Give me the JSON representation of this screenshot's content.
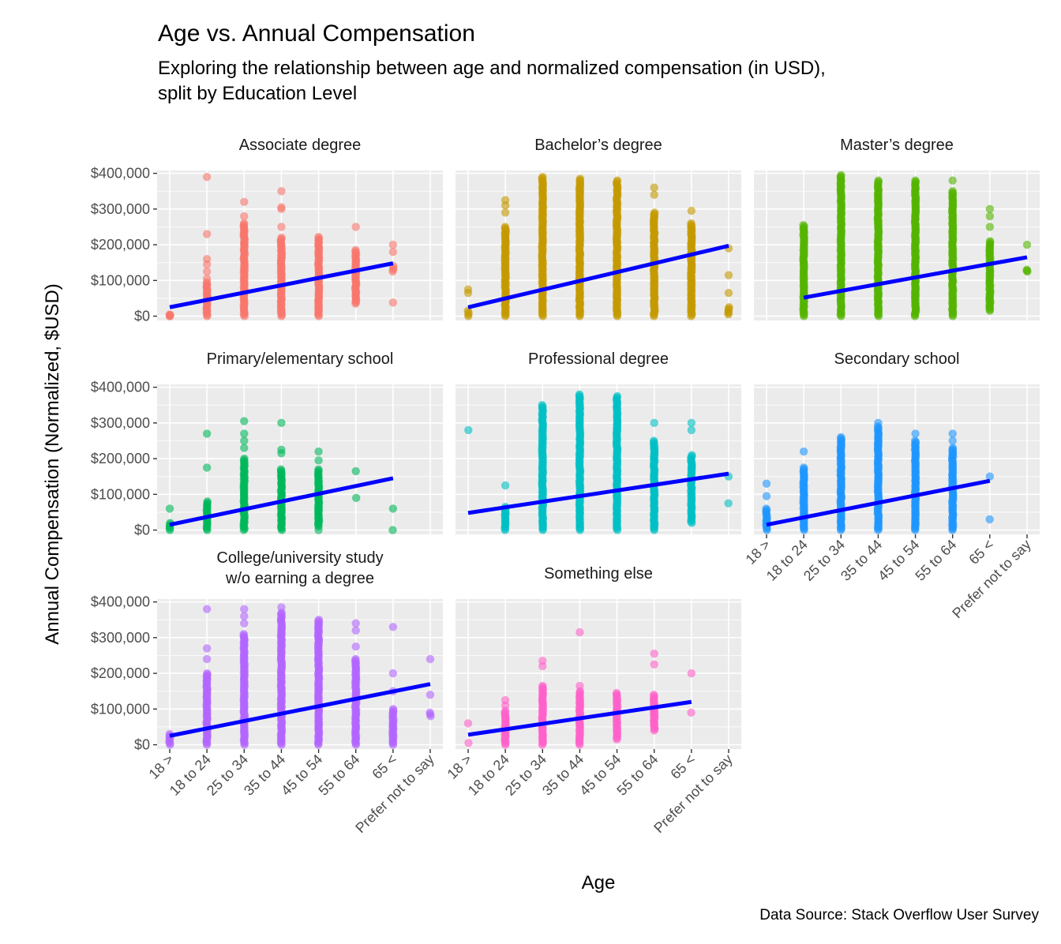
{
  "chart_data": {
    "type": "scatter",
    "title": "Age vs. Annual Compensation",
    "subtitle_lines": [
      "Exploring the relationship between age and normalized compensation (in USD),",
      "split by Education Level"
    ],
    "xlabel": "Age",
    "ylabel": "Annual Compensation (Normalized, $USD)",
    "caption": "Data Source: Stack Overflow User Survey",
    "categories": [
      "18 >",
      "18 to 24",
      "25 to 34",
      "35 to 44",
      "45 to 54",
      "55 to 64",
      "65 <",
      "Prefer not to say"
    ],
    "y_ticks": [
      0,
      100000,
      200000,
      300000,
      400000
    ],
    "y_tick_labels": [
      "$0",
      "$100,000",
      "$200,000",
      "$300,000",
      "$400,000"
    ],
    "ylim": [
      -12000,
      408000
    ],
    "grid": true,
    "legend": "none",
    "trend_color": "#0000FF",
    "panels": [
      {
        "name": "Associate degree",
        "color": "#F8766D",
        "trend": [
          {
            "x": 1,
            "y": 25000
          },
          {
            "x": 7,
            "y": 148000
          }
        ],
        "columns": [
          {
            "x": 1,
            "range": [
              0,
              5000
            ],
            "points": [
              0,
              3000
            ]
          },
          {
            "x": 2,
            "range": [
              0,
              95000
            ],
            "points": [
              105000,
              125000,
              145000,
              160000,
              230000,
              390000
            ]
          },
          {
            "x": 3,
            "range": [
              0,
              260000
            ],
            "points": [
              280000,
              320000
            ]
          },
          {
            "x": 4,
            "range": [
              0,
              220000
            ],
            "points": [
              250000,
              300000,
              305000,
              350000
            ]
          },
          {
            "x": 5,
            "range": [
              0,
              222000
            ],
            "points": []
          },
          {
            "x": 6,
            "range": [
              35000,
              185000
            ],
            "points": [
              250000
            ]
          },
          {
            "x": 7,
            "range": [
              125000,
              140000
            ],
            "points": [
              38000,
              180000,
              200000
            ]
          }
        ]
      },
      {
        "name": "Bachelor’s degree",
        "color": "#C49A00",
        "trend": [
          {
            "x": 1,
            "y": 25000
          },
          {
            "x": 8,
            "y": 197000
          }
        ],
        "columns": [
          {
            "x": 1,
            "range": [
              0,
              15000
            ],
            "points": [
              65000,
              75000
            ]
          },
          {
            "x": 2,
            "range": [
              0,
              250000
            ],
            "points": [
              290000,
              310000,
              325000
            ]
          },
          {
            "x": 3,
            "range": [
              0,
              390000
            ],
            "points": []
          },
          {
            "x": 4,
            "range": [
              0,
              385000
            ],
            "points": []
          },
          {
            "x": 5,
            "range": [
              0,
              380000
            ],
            "points": []
          },
          {
            "x": 6,
            "range": [
              0,
              290000
            ],
            "points": [
              340000,
              360000
            ]
          },
          {
            "x": 7,
            "range": [
              0,
              260000
            ],
            "points": [
              295000
            ]
          },
          {
            "x": 8,
            "range": [
              5000,
              25000
            ],
            "points": [
              65000,
              115000,
              190000
            ]
          }
        ]
      },
      {
        "name": "Master’s degree",
        "color": "#53B400",
        "trend": [
          {
            "x": 2,
            "y": 52000
          },
          {
            "x": 8,
            "y": 165000
          }
        ],
        "columns": [
          {
            "x": 2,
            "range": [
              0,
              255000
            ],
            "points": []
          },
          {
            "x": 3,
            "range": [
              0,
              395000
            ],
            "points": []
          },
          {
            "x": 4,
            "range": [
              0,
              380000
            ],
            "points": []
          },
          {
            "x": 5,
            "range": [
              0,
              380000
            ],
            "points": []
          },
          {
            "x": 6,
            "range": [
              0,
              350000
            ],
            "points": [
              380000
            ]
          },
          {
            "x": 7,
            "range": [
              15000,
              210000
            ],
            "points": [
              250000,
              280000,
              300000
            ]
          },
          {
            "x": 8,
            "range": [
              125000,
              130000
            ],
            "points": [
              200000
            ]
          }
        ]
      },
      {
        "name": "Primary/elementary school",
        "color": "#00B85A",
        "trend": [
          {
            "x": 1,
            "y": 15000
          },
          {
            "x": 7,
            "y": 145000
          }
        ],
        "columns": [
          {
            "x": 1,
            "range": [
              0,
              20000
            ],
            "points": [
              60000
            ]
          },
          {
            "x": 2,
            "range": [
              0,
              80000
            ],
            "points": [
              175000,
              270000
            ]
          },
          {
            "x": 3,
            "range": [
              0,
              200000
            ],
            "points": [
              230000,
              250000,
              270000,
              305000
            ]
          },
          {
            "x": 4,
            "range": [
              0,
              170000
            ],
            "points": [
              215000,
              225000,
              300000
            ]
          },
          {
            "x": 5,
            "range": [
              10000,
              170000
            ],
            "points": [
              0,
              195000,
              220000
            ]
          },
          {
            "x": 6,
            "range": [
              90000,
              90000
            ],
            "points": [
              165000
            ]
          },
          {
            "x": 7,
            "range": [
              0,
              0
            ],
            "points": [
              60000
            ]
          }
        ]
      },
      {
        "name": "Professional degree",
        "color": "#00BFC4",
        "trend": [
          {
            "x": 1,
            "y": 48000
          },
          {
            "x": 8,
            "y": 158000
          }
        ],
        "columns": [
          {
            "x": 1,
            "range": [
              280000,
              280000
            ],
            "points": []
          },
          {
            "x": 2,
            "range": [
              0,
              65000
            ],
            "points": [
              125000
            ]
          },
          {
            "x": 3,
            "range": [
              0,
              350000
            ],
            "points": []
          },
          {
            "x": 4,
            "range": [
              0,
              380000
            ],
            "points": []
          },
          {
            "x": 5,
            "range": [
              0,
              375000
            ],
            "points": []
          },
          {
            "x": 6,
            "range": [
              0,
              250000
            ],
            "points": [
              300000
            ]
          },
          {
            "x": 7,
            "range": [
              20000,
              210000
            ],
            "points": [
              175000,
              280000,
              300000
            ]
          },
          {
            "x": 8,
            "range": [
              75000,
              75000
            ],
            "points": [
              150000
            ]
          }
        ]
      },
      {
        "name": "Secondary school",
        "color": "#1E96FF",
        "trend": [
          {
            "x": 1,
            "y": 15000
          },
          {
            "x": 7,
            "y": 138000
          }
        ],
        "columns": [
          {
            "x": 1,
            "range": [
              0,
              60000
            ],
            "points": [
              95000,
              130000
            ]
          },
          {
            "x": 2,
            "range": [
              0,
              175000
            ],
            "points": [
              220000
            ]
          },
          {
            "x": 3,
            "range": [
              0,
              260000
            ],
            "points": []
          },
          {
            "x": 4,
            "range": [
              0,
              290000
            ],
            "points": [
              300000
            ]
          },
          {
            "x": 5,
            "range": [
              0,
              250000
            ],
            "points": [
              270000
            ]
          },
          {
            "x": 6,
            "range": [
              0,
              230000
            ],
            "points": [
              250000,
              270000
            ]
          },
          {
            "x": 7,
            "range": [
              30000,
              30000
            ],
            "points": [
              150000
            ]
          }
        ]
      },
      {
        "name": "College/university study w/o earning a degree",
        "color": "#B265FF",
        "trend": [
          {
            "x": 1,
            "y": 25000
          },
          {
            "x": 8,
            "y": 170000
          }
        ],
        "columns": [
          {
            "x": 1,
            "range": [
              0,
              30000
            ],
            "points": []
          },
          {
            "x": 2,
            "range": [
              0,
              200000
            ],
            "points": [
              240000,
              270000,
              380000
            ]
          },
          {
            "x": 3,
            "range": [
              0,
              310000
            ],
            "points": [
              340000,
              360000,
              380000
            ]
          },
          {
            "x": 4,
            "range": [
              0,
              370000
            ],
            "points": [
              385000
            ]
          },
          {
            "x": 5,
            "range": [
              0,
              350000
            ],
            "points": []
          },
          {
            "x": 6,
            "range": [
              0,
              240000
            ],
            "points": [
              275000,
              320000,
              340000
            ]
          },
          {
            "x": 7,
            "range": [
              0,
              100000
            ],
            "points": [
              150000,
              200000,
              330000
            ]
          },
          {
            "x": 8,
            "range": [
              80000,
              90000
            ],
            "points": [
              140000,
              240000
            ]
          }
        ]
      },
      {
        "name": "Something else",
        "color": "#FF61C9",
        "trend": [
          {
            "x": 1,
            "y": 28000
          },
          {
            "x": 7,
            "y": 120000
          }
        ],
        "columns": [
          {
            "x": 1,
            "range": [
              5000,
              5000
            ],
            "points": [
              60000
            ]
          },
          {
            "x": 2,
            "range": [
              0,
              95000
            ],
            "points": [
              110000,
              125000
            ]
          },
          {
            "x": 3,
            "range": [
              0,
              165000
            ],
            "points": [
              220000,
              235000
            ]
          },
          {
            "x": 4,
            "range": [
              0,
              150000
            ],
            "points": [
              165000,
              315000
            ]
          },
          {
            "x": 5,
            "range": [
              15000,
              145000
            ],
            "points": []
          },
          {
            "x": 6,
            "range": [
              40000,
              140000
            ],
            "points": [
              225000,
              255000
            ]
          },
          {
            "x": 7,
            "range": [
              90000,
              90000
            ],
            "points": [
              200000
            ]
          }
        ]
      }
    ]
  }
}
